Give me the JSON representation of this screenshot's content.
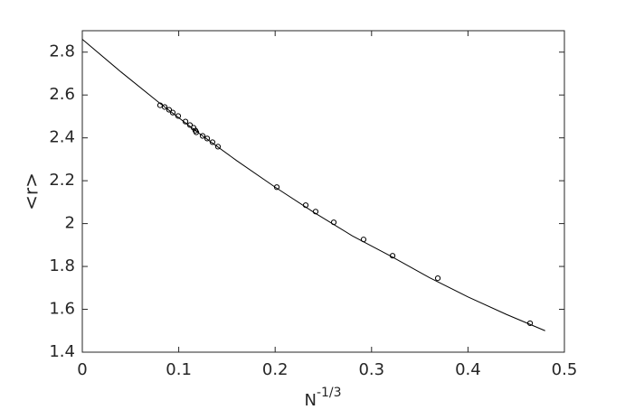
{
  "chart_data": {
    "type": "scatter",
    "xlabel": "N",
    "xlabel_sup": "-1/3",
    "ylabel": "<r>",
    "xlim": [
      0,
      0.5
    ],
    "ylim": [
      1.4,
      2.9
    ],
    "xticks": [
      0,
      0.1,
      0.2,
      0.3,
      0.4,
      0.5
    ],
    "yticks": [
      1.4,
      1.6,
      1.8,
      2,
      2.2,
      2.4,
      2.6,
      2.8
    ],
    "grid": false,
    "series": [
      {
        "type": "scatter",
        "color": "#000000",
        "x": [
          0.0807,
          0.0854,
          0.09,
          0.0938,
          0.0994,
          0.107,
          0.1116,
          0.1154,
          0.1173,
          0.1182,
          0.1248,
          0.1295,
          0.135,
          0.1407,
          0.2017,
          0.2317,
          0.242,
          0.2608,
          0.2917,
          0.3218,
          0.3687,
          0.4644
        ],
        "values": [
          2.552,
          2.544,
          2.531,
          2.518,
          2.502,
          2.476,
          2.46,
          2.447,
          2.434,
          2.426,
          2.409,
          2.397,
          2.38,
          2.359,
          2.17,
          2.086,
          2.056,
          2.006,
          1.926,
          1.85,
          1.745,
          1.535
        ]
      },
      {
        "type": "line",
        "color": "#000000",
        "x": [
          0,
          0.04,
          0.08,
          0.12,
          0.16,
          0.2,
          0.24,
          0.28,
          0.32,
          0.36,
          0.4,
          0.44,
          0.48
        ],
        "values": [
          2.86,
          2.708,
          2.563,
          2.425,
          2.294,
          2.17,
          2.053,
          1.943,
          1.848,
          1.748,
          1.658,
          1.576,
          1.5
        ]
      }
    ]
  }
}
